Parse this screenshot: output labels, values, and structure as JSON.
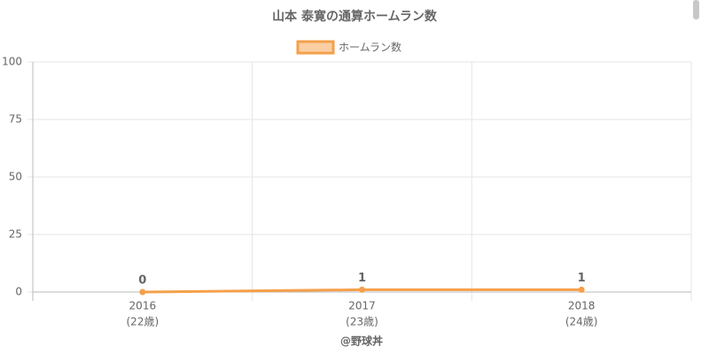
{
  "chart_data": {
    "type": "line",
    "title": "山本 泰寛の通算ホームラン数",
    "xlabel": "@野球丼",
    "categories": [
      [
        "2016",
        "(22歳)"
      ],
      [
        "2017",
        "(23歳)"
      ],
      [
        "2018",
        "(24歳)"
      ]
    ],
    "series": [
      {
        "name": "ホームラン数",
        "color": "#f5a04a",
        "values": [
          0,
          1,
          1
        ]
      }
    ],
    "ylim": [
      0,
      100
    ],
    "yticks": [
      0,
      25,
      50,
      75,
      100
    ],
    "grid": true
  }
}
